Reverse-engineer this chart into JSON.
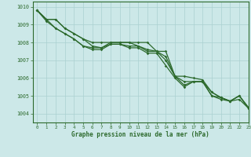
{
  "title": "Graphe pression niveau de la mer (hPa)",
  "background_color": "#cce8e8",
  "grid_color": "#aad0d0",
  "line_color": "#2d6a2d",
  "xlim": [
    -0.5,
    23
  ],
  "ylim": [
    1003.5,
    1010.3
  ],
  "yticks": [
    1004,
    1005,
    1006,
    1007,
    1008,
    1009,
    1010
  ],
  "xticks": [
    0,
    1,
    2,
    3,
    4,
    5,
    6,
    7,
    8,
    9,
    10,
    11,
    12,
    13,
    14,
    15,
    16,
    17,
    18,
    19,
    20,
    21,
    22,
    23
  ],
  "lines": [
    [
      1009.8,
      1009.3,
      1009.3,
      1008.8,
      1008.5,
      1008.2,
      1008.0,
      1008.0,
      1008.0,
      1008.0,
      1008.0,
      1008.0,
      1008.0,
      1007.5,
      1007.5,
      1006.1,
      1006.1,
      1006.0,
      1005.9,
      1005.2,
      1004.9,
      1004.7,
      1005.0,
      1004.35
    ],
    [
      1009.8,
      1009.3,
      1009.3,
      1008.8,
      1008.5,
      1008.2,
      1007.8,
      1007.7,
      1008.0,
      1008.0,
      1008.0,
      1007.8,
      1007.6,
      1007.5,
      1007.2,
      1006.1,
      1005.8,
      1005.8,
      1005.8,
      1005.0,
      1004.9,
      1004.7,
      1005.0,
      1004.3
    ],
    [
      1009.8,
      1009.3,
      1008.8,
      1008.5,
      1008.2,
      1007.8,
      1007.7,
      1007.7,
      1007.9,
      1007.9,
      1007.8,
      1007.8,
      1007.5,
      1007.5,
      1007.0,
      1006.1,
      1005.6,
      1005.8,
      1005.8,
      1005.0,
      1004.8,
      1004.7,
      1005.0,
      1004.3
    ],
    [
      1009.8,
      1009.2,
      1008.8,
      1008.5,
      1008.2,
      1007.8,
      1007.6,
      1007.6,
      1007.9,
      1007.9,
      1007.7,
      1007.7,
      1007.4,
      1007.4,
      1006.7,
      1006.0,
      1005.5,
      1005.8,
      1005.8,
      1005.2,
      1004.9,
      1004.7,
      1004.8,
      1004.3
    ]
  ]
}
